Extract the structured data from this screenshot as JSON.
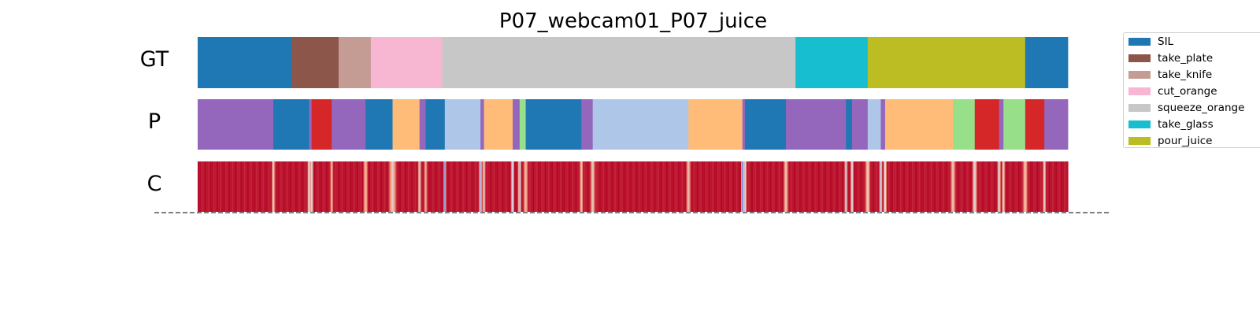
{
  "chart_data": {
    "type": "heatmap",
    "title": "P07_webcam01_P07_juice",
    "xlim": [
      0,
      1000
    ],
    "rows": [
      {
        "label": "GT"
      },
      {
        "label": "P"
      },
      {
        "label": "C"
      }
    ],
    "classes": [
      {
        "name": "SIL",
        "color": "#1f77b4"
      },
      {
        "name": "take_plate",
        "color": "#8c564b"
      },
      {
        "name": "take_knife",
        "color": "#c49c94"
      },
      {
        "name": "cut_orange",
        "color": "#f7b6d2"
      },
      {
        "name": "squeeze_orange",
        "color": "#c7c7c7"
      },
      {
        "name": "take_glass",
        "color": "#17becf"
      },
      {
        "name": "pour_juice",
        "color": "#bcbd22"
      }
    ],
    "extra_colors": {
      "purple": "#9467bd",
      "red": "#d62728",
      "peach": "#ffbb78",
      "lightblue": "#aec7e8",
      "lightgreen": "#98df8a"
    },
    "gt_segments": [
      {
        "start": 0,
        "end": 108,
        "color": "#1f77b4"
      },
      {
        "start": 108,
        "end": 162,
        "color": "#8c564b"
      },
      {
        "start": 162,
        "end": 199,
        "color": "#c49c94"
      },
      {
        "start": 199,
        "end": 281,
        "color": "#f7b6d2"
      },
      {
        "start": 281,
        "end": 687,
        "color": "#c7c7c7"
      },
      {
        "start": 687,
        "end": 770,
        "color": "#17becf"
      },
      {
        "start": 770,
        "end": 951,
        "color": "#bcbd22"
      },
      {
        "start": 951,
        "end": 1000,
        "color": "#1f77b4"
      }
    ],
    "pred_segments": [
      {
        "start": 0,
        "end": 87,
        "color": "#9467bd"
      },
      {
        "start": 87,
        "end": 128,
        "color": "#1f77b4"
      },
      {
        "start": 128,
        "end": 131,
        "color": "#9467bd"
      },
      {
        "start": 131,
        "end": 154,
        "color": "#d62728"
      },
      {
        "start": 154,
        "end": 193,
        "color": "#9467bd"
      },
      {
        "start": 193,
        "end": 224,
        "color": "#1f77b4"
      },
      {
        "start": 224,
        "end": 255,
        "color": "#ffbb78"
      },
      {
        "start": 255,
        "end": 262,
        "color": "#9467bd"
      },
      {
        "start": 262,
        "end": 284,
        "color": "#1f77b4"
      },
      {
        "start": 284,
        "end": 325,
        "color": "#aec7e8"
      },
      {
        "start": 325,
        "end": 329,
        "color": "#9467bd"
      },
      {
        "start": 329,
        "end": 362,
        "color": "#ffbb78"
      },
      {
        "start": 362,
        "end": 370,
        "color": "#9467bd"
      },
      {
        "start": 370,
        "end": 377,
        "color": "#98df8a"
      },
      {
        "start": 377,
        "end": 441,
        "color": "#1f77b4"
      },
      {
        "start": 441,
        "end": 454,
        "color": "#9467bd"
      },
      {
        "start": 454,
        "end": 564,
        "color": "#aec7e8"
      },
      {
        "start": 564,
        "end": 626,
        "color": "#ffbb78"
      },
      {
        "start": 626,
        "end": 629,
        "color": "#9467bd"
      },
      {
        "start": 629,
        "end": 676,
        "color": "#1f77b4"
      },
      {
        "start": 676,
        "end": 745,
        "color": "#9467bd"
      },
      {
        "start": 745,
        "end": 752,
        "color": "#1f77b4"
      },
      {
        "start": 752,
        "end": 770,
        "color": "#9467bd"
      },
      {
        "start": 770,
        "end": 785,
        "color": "#aec7e8"
      },
      {
        "start": 785,
        "end": 790,
        "color": "#9467bd"
      },
      {
        "start": 790,
        "end": 868,
        "color": "#ffbb78"
      },
      {
        "start": 868,
        "end": 893,
        "color": "#98df8a"
      },
      {
        "start": 893,
        "end": 921,
        "color": "#d62728"
      },
      {
        "start": 921,
        "end": 926,
        "color": "#9467bd"
      },
      {
        "start": 926,
        "end": 951,
        "color": "#98df8a"
      },
      {
        "start": 951,
        "end": 973,
        "color": "#d62728"
      },
      {
        "start": 973,
        "end": 1000,
        "color": "#9467bd"
      }
    ],
    "confidence": {
      "colormap": "coolwarm",
      "base_value": 0.97,
      "dips": [
        {
          "x": 87,
          "value": 0.45,
          "width": 2
        },
        {
          "x": 128,
          "value": 0.4,
          "width": 2
        },
        {
          "x": 131,
          "value": 0.3,
          "width": 2
        },
        {
          "x": 154,
          "value": 0.6,
          "width": 2
        },
        {
          "x": 193,
          "value": 0.6,
          "width": 3
        },
        {
          "x": 224,
          "value": 0.55,
          "width": 5
        },
        {
          "x": 255,
          "value": 0.4,
          "width": 2
        },
        {
          "x": 262,
          "value": 0.6,
          "width": 2
        },
        {
          "x": 284,
          "value": 0.1,
          "width": 1.5
        },
        {
          "x": 325,
          "value": 0.3,
          "width": 2
        },
        {
          "x": 329,
          "value": 0.5,
          "width": 2
        },
        {
          "x": 362,
          "value": 0.3,
          "width": 2
        },
        {
          "x": 370,
          "value": 0.2,
          "width": 2
        },
        {
          "x": 377,
          "value": 0.6,
          "width": 3
        },
        {
          "x": 441,
          "value": 0.5,
          "width": 2
        },
        {
          "x": 454,
          "value": 0.55,
          "width": 3
        },
        {
          "x": 564,
          "value": 0.6,
          "width": 3
        },
        {
          "x": 626,
          "value": 0.08,
          "width": 1.5
        },
        {
          "x": 629,
          "value": 0.3,
          "width": 2
        },
        {
          "x": 676,
          "value": 0.55,
          "width": 3
        },
        {
          "x": 745,
          "value": 0.4,
          "width": 2
        },
        {
          "x": 752,
          "value": 0.4,
          "width": 2
        },
        {
          "x": 770,
          "value": 0.5,
          "width": 3
        },
        {
          "x": 785,
          "value": 0.4,
          "width": 2
        },
        {
          "x": 790,
          "value": 0.35,
          "width": 2
        },
        {
          "x": 868,
          "value": 0.55,
          "width": 3
        },
        {
          "x": 893,
          "value": 0.45,
          "width": 3
        },
        {
          "x": 921,
          "value": 0.3,
          "width": 2
        },
        {
          "x": 926,
          "value": 0.45,
          "width": 2
        },
        {
          "x": 951,
          "value": 0.55,
          "width": 3
        },
        {
          "x": 973,
          "value": 0.5,
          "width": 2
        }
      ]
    },
    "legend": {
      "placement": "right"
    }
  }
}
